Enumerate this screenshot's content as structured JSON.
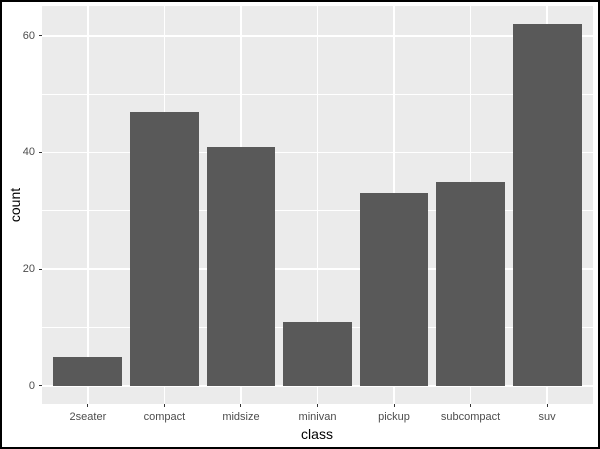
{
  "chart_data": {
    "type": "bar",
    "title": "",
    "xlabel": "class",
    "ylabel": "count",
    "categories": [
      "2seater",
      "compact",
      "midsize",
      "minivan",
      "pickup",
      "subcompact",
      "suv"
    ],
    "values": [
      5,
      47,
      41,
      11,
      33,
      35,
      62
    ],
    "y_ticks": [
      0,
      20,
      40,
      60
    ],
    "y_minor_ticks": [
      10,
      30,
      50
    ],
    "ylim": [
      -3.1,
      65.1
    ],
    "x_slots": 7.2,
    "x_first_center": 0.6,
    "bar_rel_width": 0.9,
    "grid": "on",
    "legend": "none",
    "colors": {
      "bar_fill": "#595959",
      "panel_bg": "#EBEBEB",
      "grid_major": "#FFFFFF",
      "grid_minor": "#FFFFFF",
      "tick_mark": "#333333",
      "tick_text": "#4D4D4D",
      "axis_title": "#000000",
      "figure_border": "#000000",
      "figure_bg": "#FFFFFF"
    }
  }
}
